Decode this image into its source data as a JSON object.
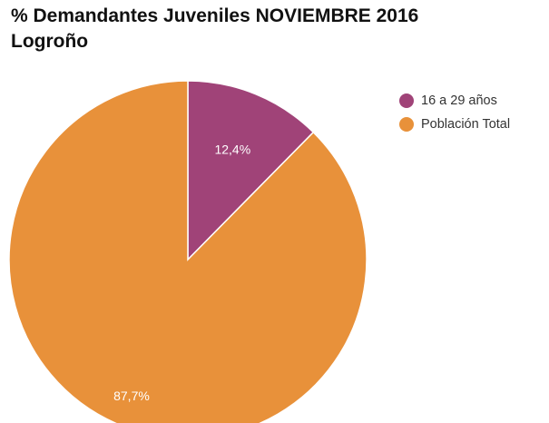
{
  "chart_data": {
    "type": "pie",
    "title": "% Demandantes Juveniles NOVIEMBRE 2016",
    "subtitle": "Logroño",
    "slices": [
      {
        "name": "16 a 29 años",
        "value": 12.4,
        "label": "12,4%",
        "color": "#A04378"
      },
      {
        "name": "Población Total",
        "value": 87.7,
        "label": "87,7%",
        "color": "#E8913A"
      }
    ],
    "legend": {
      "position": "top-right"
    }
  }
}
